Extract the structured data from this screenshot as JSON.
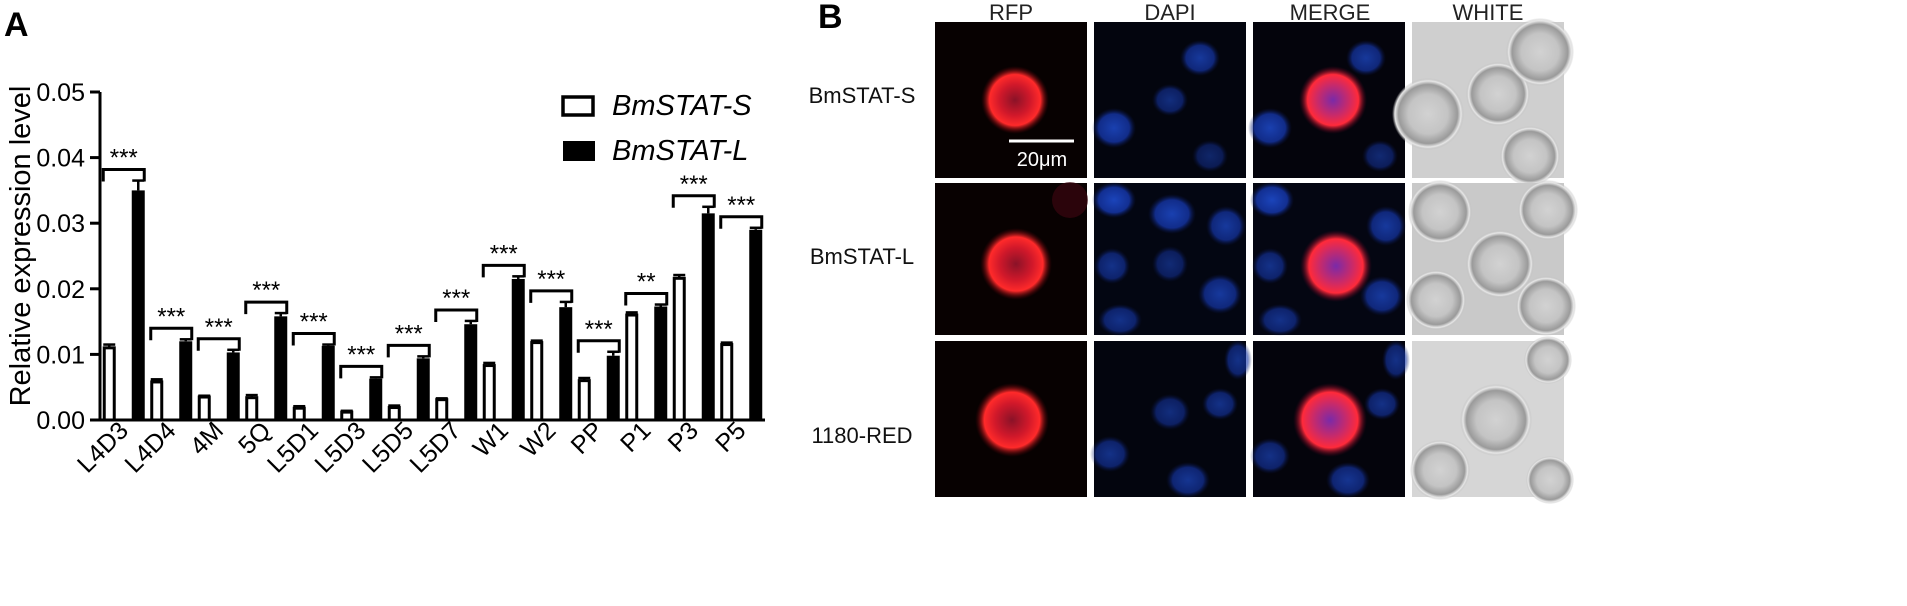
{
  "panels": {
    "a_label": "A",
    "b_label": "B"
  },
  "chart_data": {
    "type": "bar",
    "title": "",
    "xlabel": "",
    "ylabel": "Relative expression level",
    "ylim": [
      0,
      0.05
    ],
    "yticks": [
      "0.00",
      "0.01",
      "0.02",
      "0.03",
      "0.04",
      "0.05"
    ],
    "categories": [
      "L4D3",
      "L4D4",
      "4M",
      "5Q",
      "L5D1",
      "L5D3",
      "L5D5",
      "L5D7",
      "W1",
      "W2",
      "PP",
      "P1",
      "P3",
      "P5"
    ],
    "series": [
      {
        "name": "BmSTAT-S",
        "style": "open",
        "values": [
          0.011,
          0.0058,
          0.0035,
          0.0034,
          0.0018,
          0.0012,
          0.0019,
          0.0031,
          0.0083,
          0.0118,
          0.006,
          0.016,
          0.0216,
          0.0115
        ],
        "errors": [
          0.0005,
          0.0004,
          0.0002,
          0.0004,
          0.0003,
          0.0002,
          0.0003,
          0.0002,
          0.0004,
          0.0003,
          0.0004,
          0.0004,
          0.0005,
          0.0003
        ]
      },
      {
        "name": "BmSTAT-L",
        "style": "filled",
        "values": [
          0.035,
          0.012,
          0.0103,
          0.0158,
          0.0113,
          0.0063,
          0.0094,
          0.0146,
          0.0215,
          0.0172,
          0.0098,
          0.0173,
          0.0315,
          0.029
        ],
        "errors": [
          0.0015,
          0.0003,
          0.0004,
          0.0005,
          0.0002,
          0.0002,
          0.0003,
          0.0005,
          0.0004,
          0.0008,
          0.0006,
          0.0003,
          0.001,
          0.0003
        ]
      }
    ],
    "significance": [
      "***",
      "***",
      "***",
      "***",
      "***",
      "***",
      "***",
      "***",
      "***",
      "***",
      "***",
      "**",
      "***",
      "***"
    ],
    "legend_position": "top-right",
    "grid": false
  },
  "micrograph": {
    "columns": [
      "RFP",
      "DAPI",
      "MERGE",
      "WHITE"
    ],
    "rows": [
      "BmSTAT-S",
      "BmSTAT-L",
      "1180-RED"
    ],
    "scale_bar_label": "20μm"
  }
}
